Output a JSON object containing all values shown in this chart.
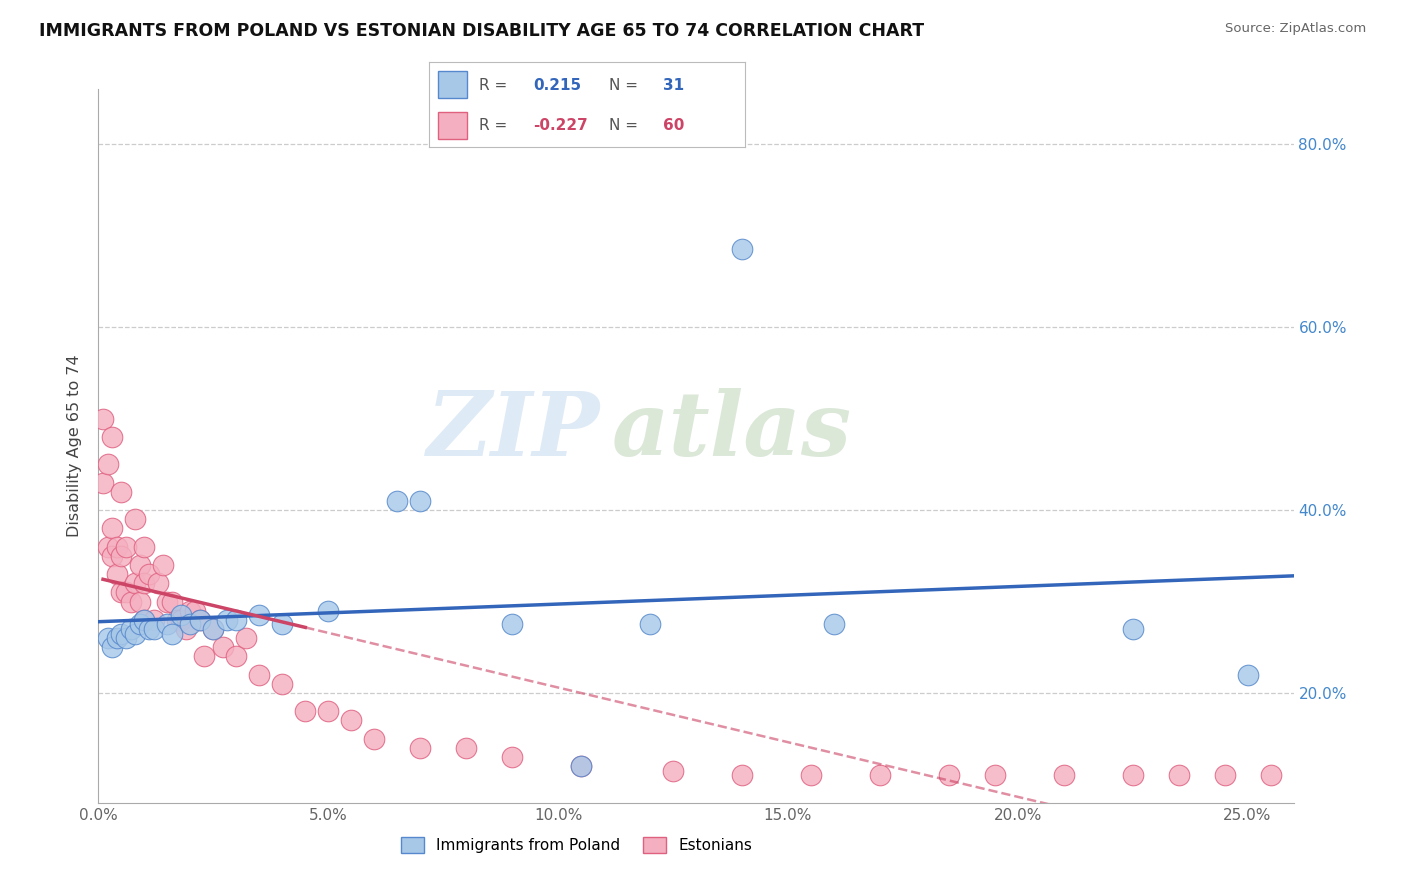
{
  "title": "IMMIGRANTS FROM POLAND VS ESTONIAN DISABILITY AGE 65 TO 74 CORRELATION CHART",
  "source": "Source: ZipAtlas.com",
  "ylabel_label": "Disability Age 65 to 74",
  "x_tick_labels": [
    "0.0%",
    "5.0%",
    "10.0%",
    "15.0%",
    "20.0%",
    "25.0%"
  ],
  "x_tick_values": [
    0.0,
    5.0,
    10.0,
    15.0,
    20.0,
    25.0
  ],
  "y_tick_labels": [
    "20.0%",
    "40.0%",
    "60.0%",
    "80.0%"
  ],
  "y_tick_values": [
    20.0,
    40.0,
    60.0,
    80.0
  ],
  "xlim": [
    0.0,
    26.0
  ],
  "ylim": [
    8.0,
    86.0
  ],
  "series1_color": "#a8c8e8",
  "series1_edge": "#5588cc",
  "series2_color": "#f4b0c0",
  "series2_edge": "#e06080",
  "line1_color": "#3366bb",
  "line2_color": "#cc4466",
  "watermark_zip": "ZIP",
  "watermark_atlas": "atlas",
  "poland_x": [
    0.2,
    0.3,
    0.4,
    0.5,
    0.6,
    0.7,
    0.8,
    0.9,
    1.0,
    1.1,
    1.2,
    1.5,
    1.6,
    1.8,
    2.0,
    2.2,
    2.5,
    2.8,
    3.0,
    3.5,
    4.0,
    5.0,
    6.5,
    7.0,
    9.0,
    10.5,
    12.0,
    14.0,
    16.0,
    22.5,
    25.0
  ],
  "poland_y": [
    26.0,
    25.0,
    26.0,
    26.5,
    26.0,
    27.0,
    26.5,
    27.5,
    28.0,
    27.0,
    27.0,
    27.5,
    26.5,
    28.5,
    27.5,
    28.0,
    27.0,
    28.0,
    28.0,
    28.5,
    27.5,
    29.0,
    41.0,
    41.0,
    27.5,
    12.0,
    27.5,
    68.5,
    27.5,
    27.0,
    22.0
  ],
  "estonian_x": [
    0.1,
    0.1,
    0.2,
    0.2,
    0.3,
    0.3,
    0.3,
    0.4,
    0.4,
    0.5,
    0.5,
    0.5,
    0.6,
    0.6,
    0.7,
    0.8,
    0.8,
    0.9,
    0.9,
    1.0,
    1.0,
    1.0,
    1.1,
    1.2,
    1.3,
    1.4,
    1.5,
    1.6,
    1.7,
    1.8,
    1.9,
    2.0,
    2.1,
    2.2,
    2.3,
    2.5,
    2.7,
    3.0,
    3.2,
    3.5,
    4.0,
    4.5,
    5.0,
    5.5,
    6.0,
    7.0,
    8.0,
    9.0,
    10.5,
    12.5,
    14.0,
    15.5,
    17.0,
    18.5,
    19.5,
    21.0,
    22.5,
    23.5,
    24.5,
    25.5
  ],
  "estonian_y": [
    43.0,
    50.0,
    36.0,
    45.0,
    35.0,
    38.0,
    48.0,
    33.0,
    36.0,
    31.0,
    35.0,
    42.0,
    31.0,
    36.0,
    30.0,
    32.0,
    39.0,
    30.0,
    34.0,
    28.0,
    32.0,
    36.0,
    33.0,
    28.0,
    32.0,
    34.0,
    30.0,
    30.0,
    28.0,
    28.0,
    27.0,
    29.0,
    29.0,
    28.0,
    24.0,
    27.0,
    25.0,
    24.0,
    26.0,
    22.0,
    21.0,
    18.0,
    18.0,
    17.0,
    15.0,
    14.0,
    14.0,
    13.0,
    12.0,
    11.5,
    11.0,
    11.0,
    11.0,
    11.0,
    11.0,
    11.0,
    11.0,
    11.0,
    11.0,
    11.0
  ],
  "line1_x_start": 0.0,
  "line1_x_end": 26.0,
  "line2_solid_x_start": 0.1,
  "line2_solid_x_end": 4.5,
  "line2_dash_x_start": 4.5,
  "line2_dash_x_end": 26.0,
  "legend_text1": "R =  0.215   N =  31",
  "legend_text2": "R = -0.227   N =  60",
  "bottom_legend1": "Immigrants from Poland",
  "bottom_legend2": "Estonians"
}
